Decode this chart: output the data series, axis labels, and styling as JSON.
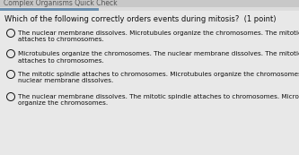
{
  "header": "Complex Organisms Quick Check",
  "question": "Which of the following correctly orders events during mitosis?  (1 point)",
  "options": [
    "The nuclear membrane dissolves. Microtubules organize the chromosomes. The mitotic spindle\nattaches to chromosomes.",
    "Microtubules organize the chromosomes. The nuclear membrane dissolves. The mitotic spindle\nattaches to chromosomes.",
    "The mitotic spindle attaches to chromosomes. Microtubules organize the chromosomes. The\nnuclear membrane dissolves.",
    "The nuclear membrane dissolves. The mitotic spindle attaches to chromosomes. Microtubules\norganize the chromosomes."
  ],
  "bg_color": "#dcdcdc",
  "content_bg": "#e8e8e8",
  "header_bg": "#c8c8c8",
  "accent_color": "#6a8faf",
  "text_color": "#111111",
  "question_fontsize": 6.0,
  "option_fontsize": 5.2,
  "header_fontsize": 5.5
}
